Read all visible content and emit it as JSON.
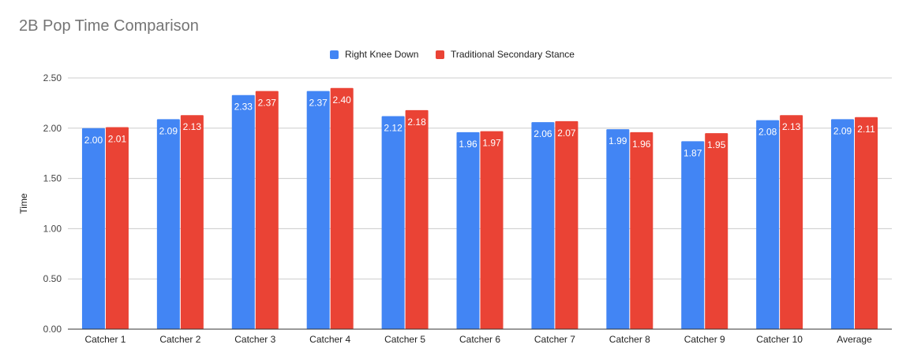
{
  "chart_data": {
    "type": "bar",
    "title": "2B Pop Time Comparison",
    "xlabel": "",
    "ylabel": "Time",
    "ylim": [
      0,
      2.5
    ],
    "yticks": [
      "0.00",
      "0.50",
      "1.00",
      "1.50",
      "2.00",
      "2.50"
    ],
    "grid": true,
    "legend_position": "top",
    "categories": [
      "Catcher 1",
      "Catcher 2",
      "Catcher 3",
      "Catcher 4",
      "Catcher 5",
      "Catcher 6",
      "Catcher 7",
      "Catcher 8",
      "Catcher 9",
      "Catcher 10",
      "Average"
    ],
    "series": [
      {
        "name": "Right Knee Down",
        "color": "#4285f4",
        "values": [
          2.0,
          2.09,
          2.33,
          2.37,
          2.12,
          1.96,
          2.06,
          1.99,
          1.87,
          2.08,
          2.09
        ],
        "labels": [
          "2.00",
          "2.09",
          "2.33",
          "2.37",
          "2.12",
          "1.96",
          "2.06",
          "1.99",
          "1.87",
          "2.08",
          "2.09"
        ]
      },
      {
        "name": "Traditional Secondary Stance",
        "color": "#ea4335",
        "values": [
          2.01,
          2.13,
          2.37,
          2.4,
          2.18,
          1.97,
          2.07,
          1.96,
          1.95,
          2.13,
          2.11
        ],
        "labels": [
          "2.01",
          "2.13",
          "2.37",
          "2.40",
          "2.18",
          "1.97",
          "2.07",
          "1.96",
          "1.95",
          "2.13",
          "2.11"
        ]
      }
    ]
  }
}
